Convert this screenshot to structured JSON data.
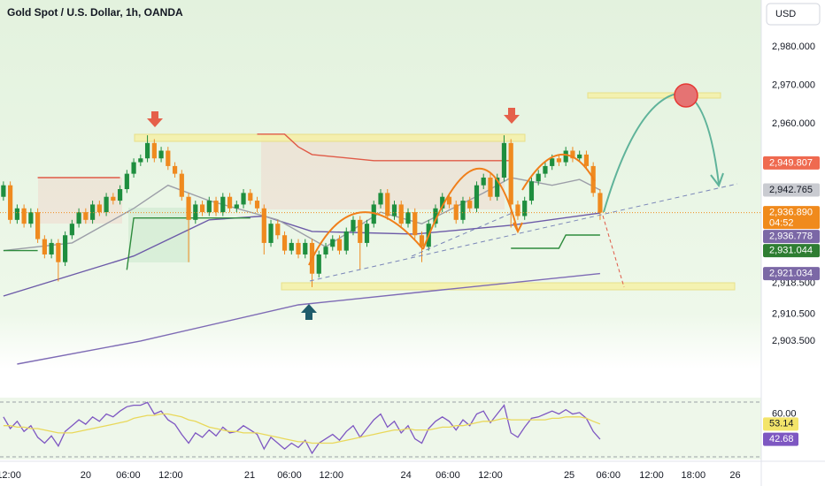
{
  "toolbar": {
    "currency": "USD"
  },
  "chart_data": [
    {
      "type": "candlestick",
      "title": "Gold Spot / U.S. Dollar, 1h, OANDA",
      "x": [
        0,
        1,
        2,
        3,
        4,
        5,
        6,
        7,
        8,
        9,
        10,
        11,
        12,
        13,
        14,
        15,
        16,
        17,
        18,
        19,
        20,
        21,
        22,
        23,
        24,
        25,
        26,
        27,
        28,
        29,
        30,
        31,
        32,
        33,
        34,
        35,
        36,
        37,
        38,
        39,
        40,
        41,
        42,
        43,
        44,
        45,
        46,
        47,
        48,
        49,
        50,
        51,
        52,
        53,
        54,
        55,
        56,
        57,
        58,
        59,
        60,
        61,
        62,
        63,
        64,
        65,
        66,
        67,
        68,
        69,
        70,
        71,
        72,
        73,
        74,
        75,
        76,
        77,
        78,
        79,
        80,
        81,
        82,
        83,
        84,
        85,
        86,
        87
      ],
      "open": [
        2941,
        2944,
        2935,
        2938,
        2934,
        2937,
        2930,
        2926,
        2929,
        2924,
        2931,
        2934,
        2937,
        2935,
        2939,
        2937,
        2941,
        2940,
        2943,
        2947,
        2950,
        2951,
        2955,
        2951,
        2953,
        2949,
        2947,
        2941,
        2935,
        2939,
        2937,
        2940,
        2937,
        2941,
        2938,
        2939,
        2942,
        2940,
        2938,
        2929,
        2934,
        2931,
        2927,
        2929,
        2926,
        2929,
        2921,
        2926,
        2928,
        2930,
        2927,
        2932,
        2935,
        2929,
        2934,
        2939,
        2942,
        2936,
        2939,
        2934,
        2937,
        2931,
        2928,
        2934,
        2938,
        2941,
        2939,
        2935,
        2940,
        2938,
        2944,
        2946,
        2941,
        2946,
        2955,
        2939,
        2936,
        2940,
        2945,
        2947,
        2949,
        2951,
        2950,
        2953,
        2951,
        2952,
        2949,
        2942
      ],
      "high": [
        2945,
        2945,
        2939,
        2939,
        2938,
        2938,
        2931,
        2930,
        2930,
        2932,
        2935,
        2938,
        2938,
        2940,
        2940,
        2942,
        2942,
        2944,
        2948,
        2951,
        2952,
        2957,
        2956,
        2954,
        2954,
        2950,
        2948,
        2942,
        2940,
        2940,
        2941,
        2941,
        2942,
        2942,
        2940,
        2943,
        2943,
        2941,
        2939,
        2935,
        2935,
        2932,
        2930,
        2930,
        2930,
        2930,
        2927,
        2929,
        2931,
        2931,
        2933,
        2936,
        2936,
        2935,
        2940,
        2943,
        2943,
        2940,
        2940,
        2938,
        2938,
        2932,
        2935,
        2939,
        2942,
        2942,
        2940,
        2941,
        2941,
        2945,
        2947,
        2947,
        2947,
        2957,
        2956,
        2940,
        2941,
        2946,
        2948,
        2950,
        2952,
        2952,
        2954,
        2954,
        2953,
        2953,
        2950,
        2943
      ],
      "low": [
        2940,
        2934,
        2934,
        2933,
        2933,
        2929,
        2925,
        2925,
        2919,
        2923,
        2930,
        2933,
        2934,
        2934,
        2936,
        2936,
        2939,
        2939,
        2942,
        2946,
        2949,
        2950,
        2950,
        2950,
        2948,
        2946,
        2940,
        2924,
        2934,
        2936,
        2936,
        2936,
        2936,
        2937,
        2937,
        2938,
        2939,
        2937,
        2926,
        2928,
        2930,
        2926,
        2926,
        2925,
        2925,
        2917.5,
        2920,
        2925,
        2927,
        2926,
        2926,
        2931,
        2922,
        2928,
        2933,
        2938,
        2935,
        2935,
        2933,
        2933,
        2930,
        2924,
        2927,
        2933,
        2937,
        2938,
        2934,
        2934,
        2937,
        2937,
        2943,
        2940,
        2940,
        2945,
        2933,
        2935,
        2935,
        2939,
        2944,
        2946,
        2948,
        2949,
        2949,
        2950,
        2950,
        2948,
        2941,
        2935
      ],
      "close": [
        2944,
        2935,
        2938,
        2934,
        2937,
        2930,
        2926,
        2929,
        2924,
        2931,
        2934,
        2937,
        2935,
        2939,
        2937,
        2941,
        2940,
        2943,
        2947,
        2950,
        2951,
        2955,
        2951,
        2953,
        2949,
        2947,
        2941,
        2935,
        2939,
        2937,
        2940,
        2937,
        2941,
        2938,
        2939,
        2942,
        2940,
        2938,
        2929,
        2934,
        2931,
        2927,
        2929,
        2926,
        2929,
        2921,
        2926,
        2928,
        2930,
        2927,
        2932,
        2935,
        2929,
        2934,
        2939,
        2942,
        2936,
        2939,
        2934,
        2937,
        2931,
        2928,
        2934,
        2938,
        2941,
        2939,
        2935,
        2940,
        2938,
        2944,
        2946,
        2941,
        2946,
        2955,
        2939,
        2936,
        2940,
        2945,
        2947,
        2949,
        2951,
        2950,
        2953,
        2951,
        2952,
        2949,
        2942,
        2936.89
      ],
      "up_color": "#1e8e3e",
      "down_color": "#ef8a1f",
      "series": [
        {
          "color": "#7e6bb5",
          "x": [
            2,
            20,
            43,
            64,
            87
          ],
          "values": [
            2897.5,
            2903.5,
            2912.9,
            2916.8,
            2921.034
          ]
        },
        {
          "color": "#6c5aa8",
          "x": [
            0,
            19,
            30,
            38,
            45,
            60,
            74,
            87
          ],
          "values": [
            2915.2,
            2925.6,
            2935,
            2936,
            2932,
            2931.3,
            2933.6,
            2936.778
          ]
        },
        {
          "color": "#9c9ea8",
          "x": [
            0,
            10,
            19,
            24,
            30,
            40,
            47,
            55,
            61,
            70,
            74,
            80,
            84,
            87
          ],
          "values": [
            2927,
            2929,
            2938,
            2944,
            2940,
            2935,
            2928,
            2937,
            2934,
            2942,
            2946,
            2944,
            2945.5,
            2942.765
          ]
        },
        {
          "color": "#2e8b3d",
          "x": [
            0,
            5,
            6,
            18,
            19,
            26,
            36,
            37,
            74,
            81,
            82,
            87
          ],
          "values": [
            2927,
            2927,
            null,
            2922,
            2935.5,
            2935.5,
            2935.5,
            null,
            2927.6,
            2927.6,
            2931.044,
            2931.044
          ]
        },
        {
          "color": "#e05a47",
          "x": [
            5,
            17,
            18,
            37,
            41,
            43,
            45,
            54,
            74
          ],
          "values": [
            2946,
            2946,
            null,
            2957.3,
            2957.3,
            2954,
            2952,
            2950.4,
            2950.4
          ]
        }
      ],
      "price_labels": [
        {
          "value": 2949.807,
          "label": "2,949.807",
          "color": "#ef6a50"
        },
        {
          "value": 2942.765,
          "label": "2,942.765",
          "color": "#c9cbd1"
        },
        {
          "value": 2936.89,
          "label": "2,936.890",
          "countdown": "04:52",
          "color": "#f08a1c"
        },
        {
          "value": 2936.778,
          "label": "2,936.778",
          "color": "#7b68a6"
        },
        {
          "value": 2931.044,
          "label": "2,931.044",
          "color": "#2e7d32"
        },
        {
          "value": 2921.034,
          "label": "2,921.034",
          "color": "#7b68a6"
        }
      ],
      "xlim": [
        -0.5,
        110.5
      ],
      "xticks": [
        {
          "value": 0.8,
          "label": "12:00"
        },
        {
          "value": 12,
          "label": "20"
        },
        {
          "value": 18.2,
          "label": "06:00"
        },
        {
          "value": 24.4,
          "label": "12:00"
        },
        {
          "value": 35.9,
          "label": "21"
        },
        {
          "value": 41.7,
          "label": "06:00"
        },
        {
          "value": 47.8,
          "label": "12:00"
        },
        {
          "value": 58.7,
          "label": "24"
        },
        {
          "value": 64.8,
          "label": "06:00"
        },
        {
          "value": 71,
          "label": "12:00"
        },
        {
          "value": 82.5,
          "label": "25"
        },
        {
          "value": 88.2,
          "label": "06:00"
        },
        {
          "value": 94.5,
          "label": "12:00"
        },
        {
          "value": 100.6,
          "label": "18:00"
        },
        {
          "value": 106.7,
          "label": "26"
        }
      ],
      "ylim": [
        2896.8,
        2992.2
      ],
      "yticks": [
        {
          "value": 2980,
          "label": "2,980.000"
        },
        {
          "value": 2970,
          "label": "2,970.000"
        },
        {
          "value": 2960,
          "label": "2,960.000"
        },
        {
          "value": 2918.5,
          "label": "2,918.500"
        },
        {
          "value": 2910.5,
          "label": "2,910.500"
        },
        {
          "value": 2903.5,
          "label": "2,903.500"
        }
      ],
      "grid": false
    },
    {
      "type": "line",
      "series": [
        {
          "color": "#7e57c2",
          "label_color": "#7e57c2",
          "values": [
            58,
            50,
            55,
            48,
            52,
            44,
            40,
            45,
            38,
            48,
            52,
            56,
            53,
            58,
            55,
            60,
            58,
            62,
            65,
            66,
            66,
            68,
            60,
            62,
            56,
            53,
            46,
            40,
            47,
            44,
            49,
            45,
            51,
            47,
            48,
            52,
            49,
            46,
            36,
            44,
            40,
            36,
            40,
            37,
            42,
            33,
            40,
            43,
            46,
            42,
            48,
            52,
            44,
            50,
            56,
            60,
            51,
            55,
            47,
            52,
            43,
            40,
            50,
            55,
            58,
            55,
            49,
            56,
            52,
            60,
            62,
            54,
            60,
            66,
            47,
            44,
            51,
            57,
            58,
            60,
            62,
            60,
            63,
            60,
            61,
            57,
            48,
            42.68
          ]
        },
        {
          "color": "#e9d85a",
          "label_color": "#f3e46a",
          "values": [
            52,
            52,
            51,
            51,
            50,
            50,
            49,
            48,
            47,
            47,
            47,
            48,
            49,
            50,
            51,
            52,
            53,
            54,
            55,
            57,
            58,
            59,
            59,
            60,
            60,
            59,
            58,
            56,
            55,
            53,
            51,
            50,
            49,
            48,
            48,
            47,
            47,
            47,
            46,
            45,
            44,
            43,
            42,
            41,
            41,
            40,
            40,
            40,
            40,
            41,
            42,
            43,
            44,
            45,
            46,
            47,
            48,
            49,
            49,
            50,
            49,
            49,
            49,
            50,
            51,
            51,
            52,
            52,
            53,
            54,
            55,
            55,
            56,
            57,
            56,
            56,
            56,
            56,
            56,
            56,
            57,
            57,
            58,
            58,
            58,
            57,
            55,
            53.14
          ]
        }
      ],
      "ylim": [
        30,
        70
      ],
      "yticks": [
        {
          "value": 60,
          "label": "60.00"
        }
      ]
    }
  ]
}
